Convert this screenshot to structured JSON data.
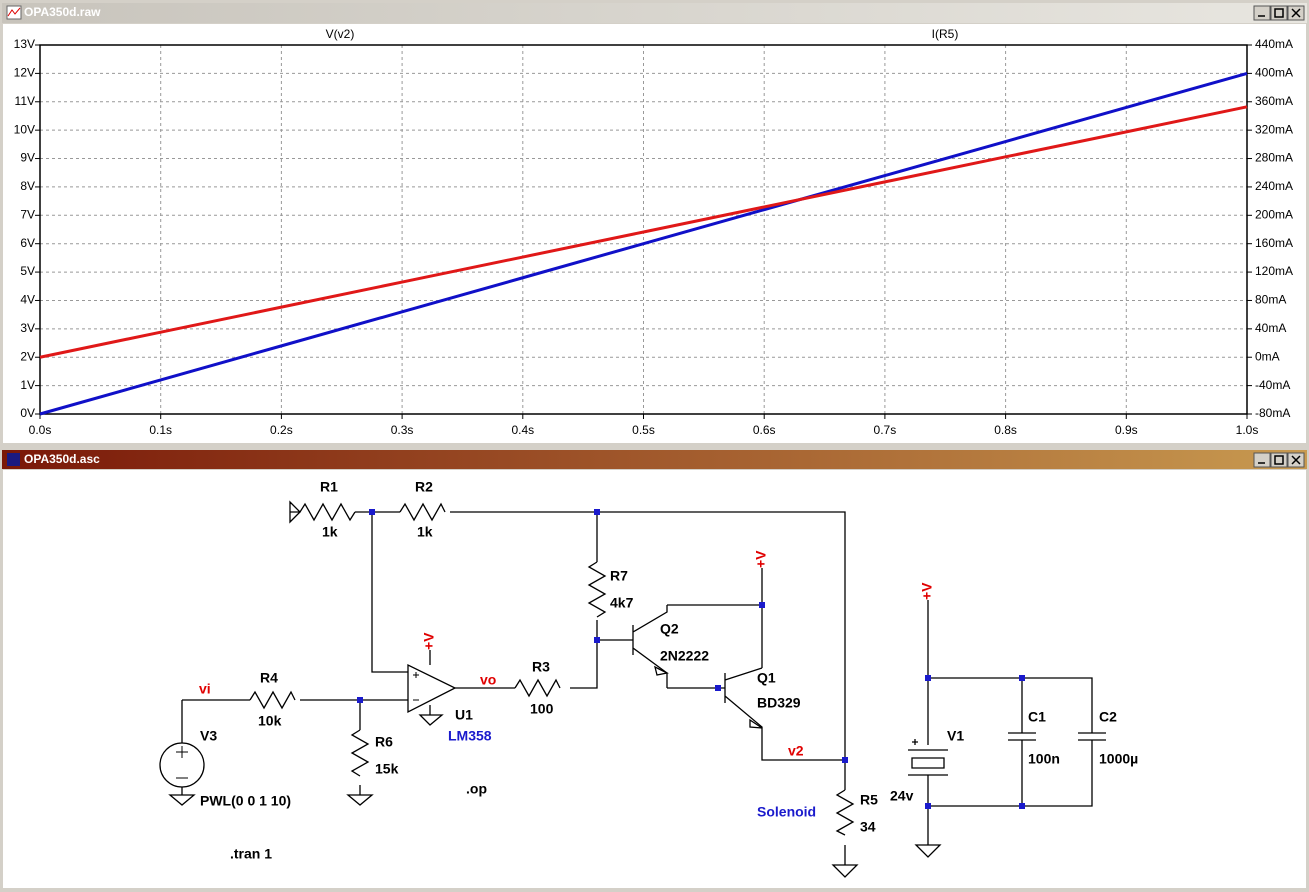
{
  "plot_window": {
    "title": "OPA350d.raw"
  },
  "chart_data": {
    "type": "line",
    "x": [
      0,
      0.1,
      0.2,
      0.3,
      0.4,
      0.5,
      0.6,
      0.7,
      0.8,
      0.9,
      1.0
    ],
    "series": [
      {
        "name": "V(v2)",
        "color": "#1010c8",
        "values": [
          0,
          1.2,
          2.4,
          3.6,
          4.8,
          6.0,
          7.2,
          8.4,
          9.6,
          10.8,
          12.0
        ]
      },
      {
        "name": "I(R5)",
        "color": "#e01818",
        "axis": "y2",
        "values": [
          0,
          35.3,
          70.6,
          105.9,
          141.2,
          176.5,
          211.8,
          247.1,
          282.4,
          317.6,
          352.9
        ]
      }
    ],
    "xlim": [
      0,
      1.0
    ],
    "xticks": [
      {
        "value": 0,
        "label": "0.0s"
      },
      {
        "value": 0.1,
        "label": "0.1s"
      },
      {
        "value": 0.2,
        "label": "0.2s"
      },
      {
        "value": 0.3,
        "label": "0.3s"
      },
      {
        "value": 0.4,
        "label": "0.4s"
      },
      {
        "value": 0.5,
        "label": "0.5s"
      },
      {
        "value": 0.6,
        "label": "0.6s"
      },
      {
        "value": 0.7,
        "label": "0.7s"
      },
      {
        "value": 0.8,
        "label": "0.8s"
      },
      {
        "value": 0.9,
        "label": "0.9s"
      },
      {
        "value": 1.0,
        "label": "1.0s"
      }
    ],
    "ylim": [
      0,
      13
    ],
    "yticks": [
      {
        "value": 0,
        "label": "0V"
      },
      {
        "value": 1,
        "label": "1V"
      },
      {
        "value": 2,
        "label": "2V"
      },
      {
        "value": 3,
        "label": "3V"
      },
      {
        "value": 4,
        "label": "4V"
      },
      {
        "value": 5,
        "label": "5V"
      },
      {
        "value": 6,
        "label": "6V"
      },
      {
        "value": 7,
        "label": "7V"
      },
      {
        "value": 8,
        "label": "8V"
      },
      {
        "value": 9,
        "label": "9V"
      },
      {
        "value": 10,
        "label": "10V"
      },
      {
        "value": 11,
        "label": "11V"
      },
      {
        "value": 12,
        "label": "12V"
      },
      {
        "value": 13,
        "label": "13V"
      }
    ],
    "y2lim": [
      -80,
      440
    ],
    "y2ticks": [
      {
        "value": -80,
        "label": "-80mA"
      },
      {
        "value": -40,
        "label": "-40mA"
      },
      {
        "value": 0,
        "label": "0mA"
      },
      {
        "value": 40,
        "label": "40mA"
      },
      {
        "value": 80,
        "label": "80mA"
      },
      {
        "value": 120,
        "label": "120mA"
      },
      {
        "value": 160,
        "label": "160mA"
      },
      {
        "value": 200,
        "label": "200mA"
      },
      {
        "value": 240,
        "label": "240mA"
      },
      {
        "value": 280,
        "label": "280mA"
      },
      {
        "value": 320,
        "label": "320mA"
      },
      {
        "value": 360,
        "label": "360mA"
      },
      {
        "value": 400,
        "label": "400mA"
      },
      {
        "value": 440,
        "label": "440mA"
      }
    ],
    "grid": true
  },
  "schematic_window": {
    "title": "OPA350d.asc",
    "components": [
      {
        "ref": "R1",
        "value": "1k"
      },
      {
        "ref": "R2",
        "value": "1k"
      },
      {
        "ref": "R7",
        "value": "4k7"
      },
      {
        "ref": "Q2",
        "value": "2N2222"
      },
      {
        "ref": "R3",
        "value": "100"
      },
      {
        "ref": "U1",
        "value": "LM358"
      },
      {
        "ref": "R4",
        "value": "10k"
      },
      {
        "ref": "R6",
        "value": "15k"
      },
      {
        "ref": "V3",
        "value": "PWL(0 0 1 10)"
      },
      {
        "ref": "Q1",
        "value": "BD329"
      },
      {
        "ref": "R5",
        "value": "34"
      },
      {
        "ref": "V1",
        "value": "24v"
      },
      {
        "ref": "C1",
        "value": "100n"
      },
      {
        "ref": "C2",
        "value": "1000µ"
      }
    ],
    "nets": [
      "vi",
      "vo",
      "v2"
    ],
    "supply_labels": [
      "+V",
      "+V",
      "+V"
    ],
    "comment": "Solenoid",
    "directives": [
      ".op",
      ".tran 1"
    ]
  }
}
